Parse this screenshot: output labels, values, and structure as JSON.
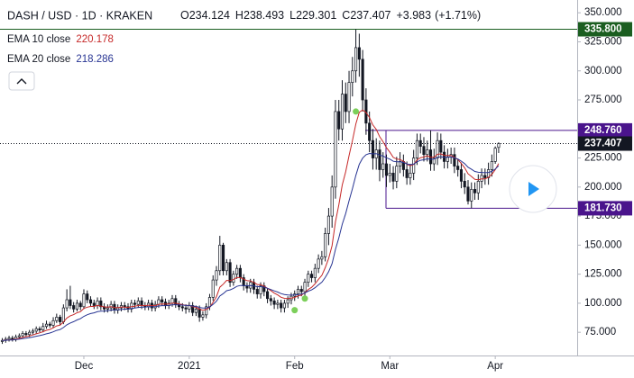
{
  "chart_data": {
    "type": "candlestick",
    "title": "DASH / USD · 1D · KRAKEN",
    "header_labels": [
      "O",
      "H",
      "L",
      "C"
    ],
    "change": "+3.983",
    "change_pct": "(+1.71%)",
    "categories": [
      null,
      null,
      null,
      null,
      null,
      null,
      null,
      null,
      null,
      null,
      null,
      null,
      null,
      null,
      null,
      null,
      null,
      null,
      null,
      null,
      null,
      null,
      null,
      null,
      "Dec",
      null,
      null,
      null,
      null,
      null,
      null,
      null,
      null,
      null,
      null,
      null,
      null,
      null,
      null,
      null,
      null,
      null,
      null,
      null,
      null,
      null,
      null,
      null,
      null,
      null,
      null,
      null,
      null,
      null,
      null,
      "2021",
      null,
      null,
      null,
      null,
      null,
      null,
      null,
      null,
      null,
      null,
      null,
      null,
      null,
      null,
      null,
      null,
      null,
      null,
      null,
      null,
      null,
      null,
      null,
      null,
      null,
      null,
      null,
      null,
      null,
      null,
      "Feb",
      null,
      null,
      null,
      null,
      null,
      null,
      null,
      null,
      null,
      null,
      null,
      null,
      null,
      null,
      null,
      null,
      null,
      null,
      null,
      null,
      null,
      null,
      null,
      null,
      null,
      null,
      null,
      "Mar",
      null,
      null,
      null,
      null,
      null,
      null,
      null,
      null,
      null,
      null,
      null,
      null,
      null,
      null,
      null,
      null,
      null,
      null,
      null,
      null,
      null,
      null,
      null,
      null,
      null,
      null,
      null,
      null,
      null,
      null,
      "Apr",
      null
    ],
    "candles": {
      "up_color": "#ffffff",
      "down_color": "#131722",
      "outline": "#131722",
      "open": [
        67,
        68,
        69,
        70,
        69,
        71,
        72,
        74,
        73,
        75,
        76,
        78,
        77,
        80,
        82,
        81,
        85,
        88,
        84,
        96,
        103,
        98,
        95,
        100,
        97,
        108,
        103,
        100,
        98,
        102,
        97,
        95,
        96,
        99,
        94,
        96,
        98,
        97,
        95,
        100,
        99,
        102,
        98,
        97,
        100,
        96,
        99,
        103,
        101,
        98,
        100,
        104,
        99,
        97,
        96,
        95,
        98,
        92,
        95,
        88,
        90,
        97,
        105,
        120,
        128,
        150,
        128,
        135,
        118,
        125,
        130,
        122,
        115,
        113,
        118,
        112,
        108,
        115,
        110,
        104,
        102,
        99,
        100,
        96,
        100,
        103,
        106,
        108,
        112,
        110,
        118,
        125,
        122,
        130,
        138,
        140,
        160,
        175,
        200,
        265,
        250,
        280,
        265,
        290,
        300,
        320,
        310,
        275,
        255,
        240,
        225,
        232,
        215,
        220,
        210,
        212,
        205,
        218,
        222,
        215,
        208,
        212,
        225,
        240,
        235,
        228,
        232,
        220,
        225,
        240,
        230,
        222,
        226,
        228,
        218,
        215,
        205,
        200,
        188,
        198,
        195,
        205,
        210,
        208,
        215,
        222,
        234.124
      ],
      "high": [
        70,
        71,
        72,
        72,
        73,
        74,
        76,
        76,
        77,
        78,
        80,
        80,
        83,
        85,
        84,
        88,
        91,
        90,
        99,
        112,
        115,
        101,
        103,
        102,
        112,
        111,
        106,
        103,
        105,
        105,
        100,
        99,
        102,
        102,
        99,
        101,
        101,
        100,
        103,
        103,
        105,
        105,
        101,
        103,
        103,
        102,
        106,
        106,
        104,
        103,
        107,
        107,
        102,
        100,
        99,
        101,
        101,
        98,
        98,
        93,
        100,
        108,
        124,
        132,
        158,
        152,
        138,
        138,
        128,
        133,
        133,
        125,
        118,
        121,
        121,
        115,
        118,
        118,
        113,
        107,
        105,
        103,
        103,
        103,
        106,
        109,
        111,
        115,
        115,
        121,
        128,
        128,
        134,
        142,
        145,
        165,
        182,
        210,
        275,
        275,
        292,
        290,
        300,
        312,
        335.8,
        332,
        318,
        285,
        265,
        250,
        242,
        240,
        230,
        228,
        220,
        218,
        226,
        230,
        228,
        222,
        220,
        232,
        246,
        246,
        243,
        240,
        248.76,
        233,
        247,
        246,
        236,
        233,
        234,
        234,
        224,
        221,
        212,
        206,
        204,
        204,
        211,
        216,
        216,
        221,
        228,
        235,
        238.493
      ],
      "low": [
        65,
        66,
        67,
        67,
        67,
        69,
        70,
        71,
        71,
        73,
        74,
        75,
        75,
        78,
        79,
        79,
        83,
        81,
        82,
        93,
        95,
        92,
        93,
        94,
        95,
        100,
        97,
        95,
        95,
        94,
        92,
        92,
        93,
        91,
        91,
        93,
        94,
        92,
        92,
        96,
        96,
        95,
        94,
        94,
        93,
        93,
        96,
        98,
        95,
        95,
        97,
        96,
        94,
        93,
        91,
        92,
        89,
        89,
        84,
        85,
        87,
        94,
        102,
        115,
        124,
        124,
        124,
        114,
        115,
        121,
        118,
        111,
        109,
        109,
        108,
        104,
        104,
        106,
        100,
        98,
        95,
        95,
        92,
        92,
        96,
        99,
        102,
        104,
        106,
        106,
        114,
        118,
        118,
        126,
        133,
        136,
        150,
        165,
        190,
        240,
        240,
        255,
        255,
        278,
        290,
        295,
        265,
        245,
        230,
        215,
        215,
        205,
        208,
        200,
        204,
        198,
        199,
        212,
        209,
        202,
        202,
        206,
        219,
        229,
        222,
        222,
        214,
        214,
        219,
        224,
        216,
        216,
        220,
        212,
        209,
        199,
        194,
        185,
        181.73,
        189,
        189,
        199,
        202,
        202,
        209,
        220,
        229.301
      ],
      "close": [
        68,
        69,
        70,
        69,
        71,
        72,
        74,
        73,
        75,
        76,
        78,
        77,
        80,
        82,
        81,
        85,
        88,
        84,
        96,
        103,
        98,
        95,
        100,
        97,
        108,
        103,
        100,
        98,
        102,
        97,
        95,
        96,
        99,
        94,
        96,
        98,
        97,
        95,
        100,
        99,
        102,
        98,
        97,
        100,
        96,
        99,
        103,
        101,
        98,
        100,
        104,
        99,
        97,
        96,
        95,
        98,
        92,
        95,
        88,
        90,
        97,
        105,
        120,
        128,
        150,
        128,
        135,
        118,
        125,
        130,
        122,
        115,
        113,
        118,
        112,
        108,
        115,
        110,
        104,
        102,
        99,
        100,
        96,
        100,
        103,
        106,
        108,
        112,
        110,
        118,
        125,
        122,
        130,
        138,
        140,
        160,
        175,
        200,
        265,
        250,
        280,
        265,
        290,
        300,
        320,
        310,
        275,
        255,
        240,
        225,
        232,
        215,
        220,
        210,
        212,
        205,
        218,
        222,
        215,
        208,
        212,
        225,
        240,
        235,
        228,
        232,
        220,
        225,
        240,
        230,
        222,
        226,
        228,
        218,
        215,
        205,
        200,
        188,
        198,
        195,
        205,
        210,
        208,
        215,
        222,
        233.424,
        237.407
      ]
    },
    "series": [
      {
        "name": "EMA 10 close",
        "color": "#c62828",
        "values": [
          68,
          68.2,
          68.5,
          68.6,
          69.1,
          69.8,
          70.6,
          71.2,
          71.9,
          72.7,
          73.7,
          74.5,
          75.5,
          76.7,
          77.5,
          78.8,
          80.5,
          81.1,
          83.8,
          87.2,
          89.2,
          90.2,
          91.8,
          92.7,
          95.5,
          96.6,
          97.2,
          97.2,
          98.1,
          97.5,
          96.8,
          96.7,
          97.1,
          96.3,
          96.3,
          96.6,
          96.7,
          96.4,
          97.1,
          97.4,
          98.1,
          98.1,
          97.9,
          98.3,
          97.9,
          98.0,
          98.9,
          99.4,
          99.2,
          99.3,
          100.2,
          100.0,
          99.4,
          98.8,
          98.1,
          98.1,
          97.0,
          96.5,
          94.9,
          94.0,
          94.6,
          96.5,
          100.8,
          105.7,
          113.8,
          116.4,
          119.7,
          119.4,
          120.4,
          122.1,
          122.1,
          120.8,
          119.4,
          119.2,
          117.9,
          116.1,
          115.9,
          114.8,
          112.8,
          110.9,
          108.7,
          107.1,
          105.1,
          104.2,
          104.0,
          104.4,
          105.0,
          106.3,
          107.0,
          109.0,
          111.9,
          113.7,
          116.7,
          120.5,
          124.0,
          130.5,
          138.5,
          149.5,
          170.3,
          184.7,
          201.8,
          213.1,
          226.9,
          240.0,
          254.4,
          264.4,
          266.3,
          264.2,
          259.8,
          253.5,
          249.6,
          243.3,
          239.1,
          233.9,
          230.0,
          225.5,
          224.1,
          223.7,
          222.1,
          219.6,
          218.3,
          219.5,
          223.2,
          225.3,
          225.8,
          227.0,
          225.7,
          225.6,
          228.2,
          228.5,
          227.3,
          227.1,
          227.2,
          225.6,
          223.7,
          220.3,
          216.6,
          211.4,
          209.1,
          206.6,
          206.3,
          207.0,
          207.1,
          208.5,
          210.9,
          214.9,
          220.178
        ]
      },
      {
        "name": "EMA 20 close",
        "color": "#283593",
        "values": [
          68,
          68.1,
          68.3,
          68.4,
          68.7,
          69.0,
          69.5,
          69.9,
          70.4,
          70.9,
          71.6,
          72.1,
          72.8,
          73.7,
          74.4,
          75.4,
          76.6,
          77.3,
          79.1,
          81.4,
          83.0,
          84.1,
          85.6,
          86.7,
          88.7,
          90.1,
          91.1,
          91.7,
          92.7,
          93.1,
          93.3,
          93.6,
          94.1,
          94.1,
          94.3,
          94.6,
          94.9,
          94.9,
          95.4,
          95.8,
          96.4,
          96.6,
          96.7,
          97.0,
          96.9,
          97.1,
          97.6,
          97.9,
          97.9,
          98.1,
          98.7,
          98.7,
          98.6,
          98.4,
          98.1,
          98.1,
          97.5,
          97.3,
          96.4,
          95.8,
          95.9,
          96.8,
          99.0,
          101.7,
          106.3,
          108.3,
          110.8,
          111.5,
          112.8,
          114.5,
          115.3,
          115.2,
          115.0,
          115.3,
          114.9,
          114.3,
          114.3,
          113.9,
          112.9,
          111.8,
          110.6,
          109.6,
          108.3,
          107.5,
          107.1,
          107.0,
          107.1,
          107.5,
          107.8,
          108.8,
          110.4,
          111.5,
          113.3,
          115.8,
          118.1,
          122.1,
          127.1,
          134.0,
          146.4,
          156.2,
          168.0,
          177.2,
          188.0,
          198.6,
          210.1,
          219.6,
          224.9,
          227.8,
          228.9,
          228.5,
          228.8,
          227.5,
          226.7,
          225.2,
          224.0,
          222.2,
          221.8,
          221.8,
          221.2,
          219.9,
          219.2,
          219.8,
          221.7,
          223.0,
          223.5,
          224.3,
          223.9,
          224.1,
          225.6,
          226.0,
          225.6,
          225.7,
          225.9,
          225.1,
          224.1,
          222.3,
          220.2,
          217.1,
          215.3,
          213.4,
          212.7,
          212.6,
          212.3,
          212.6,
          213.5,
          215.4,
          218.286
        ]
      }
    ],
    "signals": {
      "color": "#7ccf5a",
      "values": [
        null,
        null,
        null,
        null,
        null,
        null,
        null,
        null,
        null,
        null,
        null,
        null,
        null,
        null,
        null,
        null,
        null,
        null,
        null,
        null,
        null,
        null,
        null,
        null,
        null,
        null,
        null,
        null,
        null,
        null,
        null,
        null,
        null,
        null,
        null,
        null,
        null,
        null,
        null,
        null,
        null,
        null,
        null,
        null,
        null,
        null,
        null,
        null,
        null,
        null,
        null,
        null,
        null,
        null,
        null,
        null,
        null,
        null,
        null,
        null,
        null,
        null,
        null,
        null,
        null,
        null,
        null,
        null,
        null,
        null,
        null,
        null,
        null,
        null,
        null,
        null,
        null,
        null,
        null,
        null,
        null,
        null,
        null,
        null,
        null,
        null,
        94,
        null,
        null,
        104,
        null,
        null,
        null,
        null,
        null,
        null,
        null,
        null,
        null,
        null,
        null,
        null,
        null,
        null,
        265,
        null,
        null,
        null,
        null,
        null,
        null,
        null,
        null,
        null,
        null,
        null,
        null,
        null,
        null,
        null,
        null,
        null,
        null,
        null,
        null,
        null,
        null,
        null,
        null,
        null,
        null,
        null,
        null,
        null,
        null,
        null,
        null,
        null,
        null,
        null,
        null,
        null,
        null,
        null,
        null,
        null,
        null
      ]
    },
    "levels": [
      {
        "value": 335.8,
        "label": "335.800",
        "color": "#1b5e20"
      },
      {
        "value": 248.76,
        "label": "248.760",
        "color": "#4a148c"
      },
      {
        "value": 181.73,
        "label": "181.730",
        "color": "#4a148c"
      }
    ],
    "ylim": [
      55,
      361
    ],
    "yticks": [
      {
        "value": 75,
        "label": "75.000"
      },
      {
        "value": 100,
        "label": "100.000"
      },
      {
        "value": 125,
        "label": "125.000"
      },
      {
        "value": 150,
        "label": "150.000"
      },
      {
        "value": 175,
        "label": "175.000"
      },
      {
        "value": 200,
        "label": "200.000"
      },
      {
        "value": 225,
        "label": "225.000"
      },
      {
        "value": 250,
        "label": "250.000"
      },
      {
        "value": 275,
        "label": "275.000"
      },
      {
        "value": 300,
        "label": "300.000"
      },
      {
        "value": 325,
        "label": "325.000"
      },
      {
        "value": 350,
        "label": "350.000"
      }
    ],
    "grid": false
  }
}
